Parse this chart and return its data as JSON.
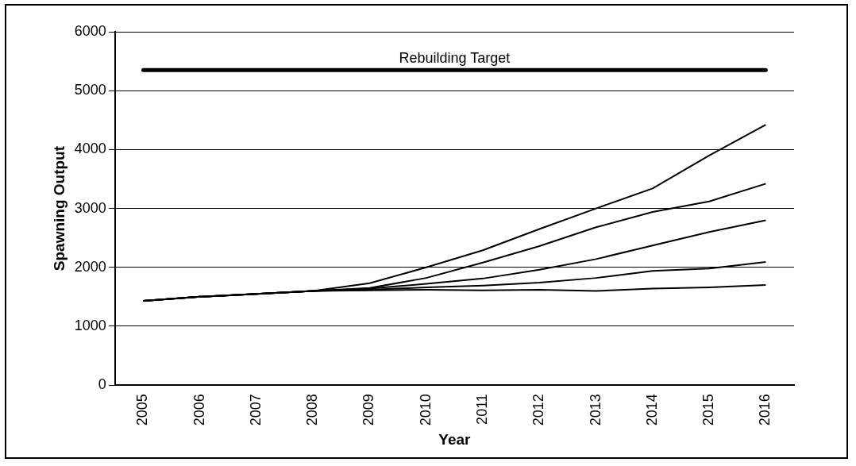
{
  "chart_data": {
    "type": "line",
    "xlabel": "Year",
    "ylabel": "Spawning Output",
    "categories": [
      "2005",
      "2006",
      "2007",
      "2008",
      "2009",
      "2010",
      "2011",
      "2012",
      "2013",
      "2014",
      "2015",
      "2016"
    ],
    "series": [
      {
        "color": "#000000",
        "values": [
          1430,
          1500,
          1550,
          1600,
          1730,
          2000,
          2290,
          2650,
          3000,
          3340,
          3900,
          4420
        ]
      },
      {
        "color": "#000000",
        "values": [
          1430,
          1500,
          1550,
          1600,
          1650,
          1820,
          2080,
          2360,
          2680,
          2940,
          3120,
          3420
        ]
      },
      {
        "color": "#000000",
        "values": [
          1430,
          1500,
          1550,
          1600,
          1640,
          1720,
          1810,
          1960,
          2140,
          2370,
          2600,
          2800
        ]
      },
      {
        "color": "#000000",
        "values": [
          1430,
          1500,
          1550,
          1600,
          1620,
          1660,
          1690,
          1740,
          1820,
          1940,
          1980,
          2090
        ]
      },
      {
        "color": "#000000",
        "values": [
          1430,
          1500,
          1550,
          1600,
          1610,
          1620,
          1610,
          1620,
          1600,
          1640,
          1660,
          1700
        ]
      }
    ],
    "ylim": [
      0,
      6000
    ],
    "yticks": [
      0,
      1000,
      2000,
      3000,
      4000,
      5000,
      6000
    ],
    "ref_lines": [
      {
        "axis": "y",
        "value": 5350,
        "label": "Rebuilding Target",
        "color": "#000000"
      }
    ],
    "grid": "y",
    "legend": false,
    "marker": "none",
    "line_style": "solid"
  }
}
